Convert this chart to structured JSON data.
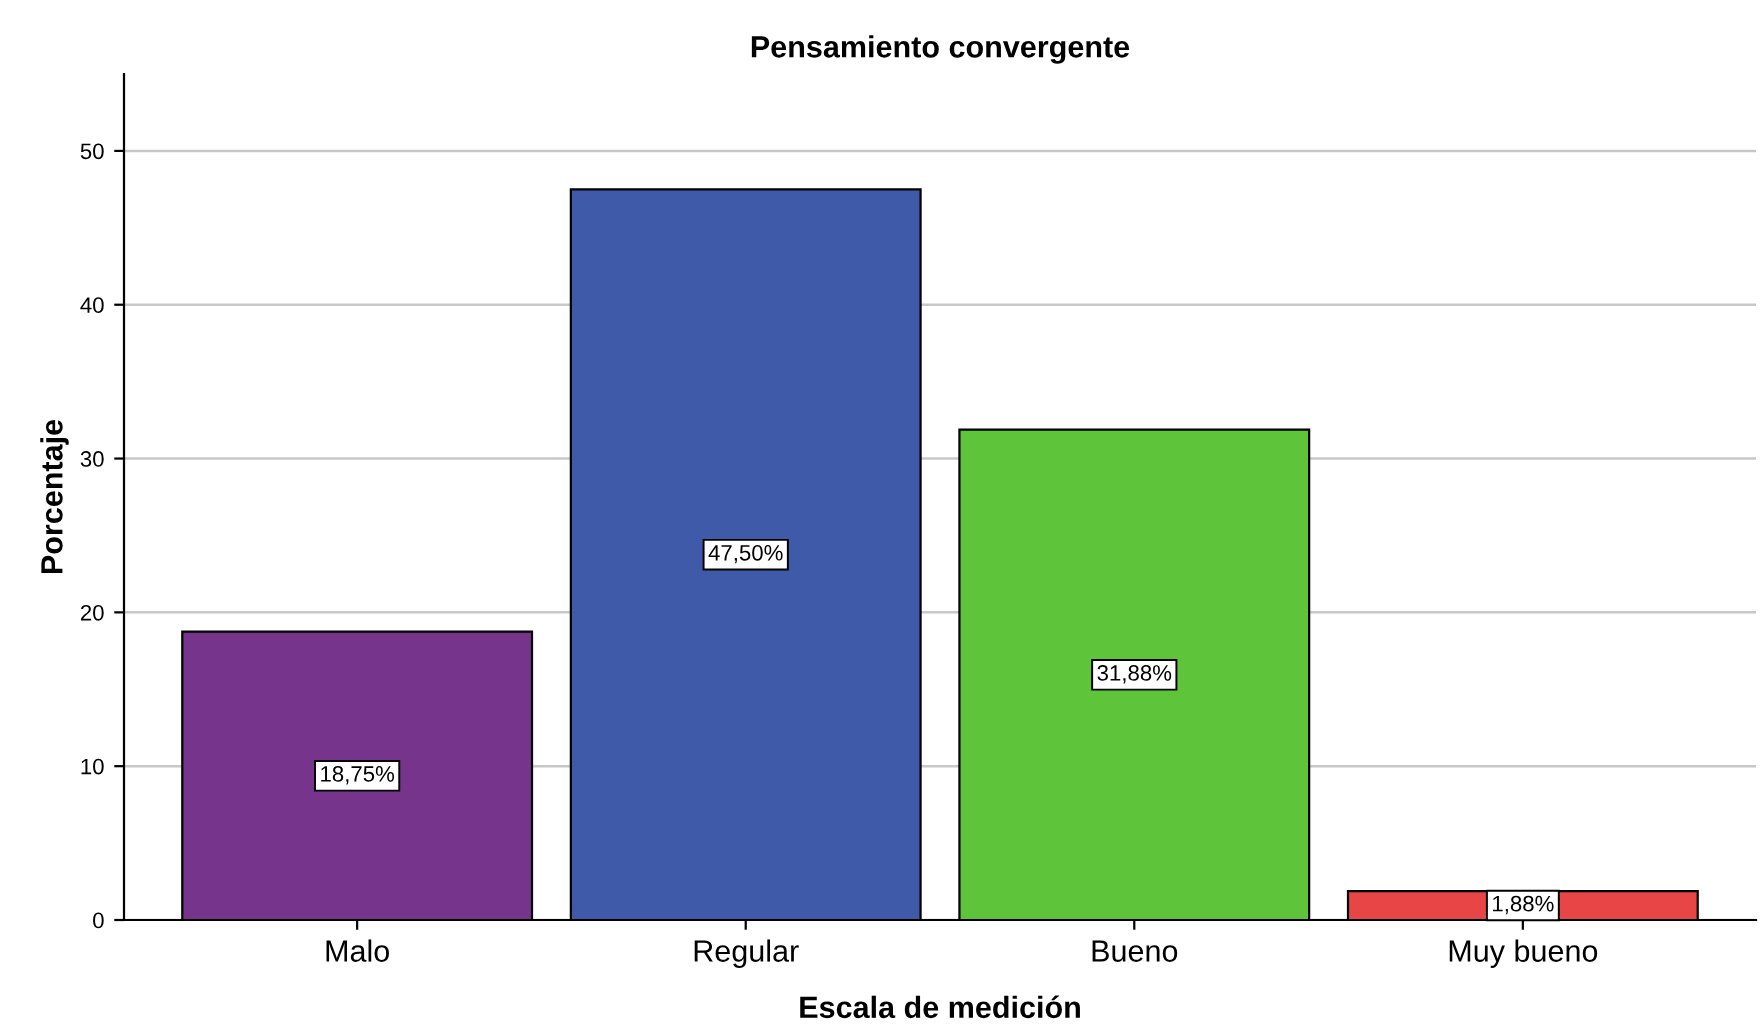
{
  "chart_data": {
    "type": "bar",
    "title": "Pensamiento convergente",
    "xlabel": "Escala de medición",
    "ylabel": "Porcentaje",
    "categories": [
      "Malo",
      "Regular",
      "Bueno",
      "Muy bueno"
    ],
    "values": [
      18.75,
      47.5,
      31.88,
      1.88
    ],
    "colors": [
      "#77348c",
      "#3f5aa8",
      "#5ec43a",
      "#e84646"
    ],
    "value_labels": [
      "18,75%",
      "47,50%",
      "31,88%",
      "1,88%"
    ],
    "ylim": [
      0,
      55
    ],
    "yticks": [
      0,
      10,
      20,
      30,
      40,
      50
    ],
    "grid": "y",
    "legend": false
  }
}
